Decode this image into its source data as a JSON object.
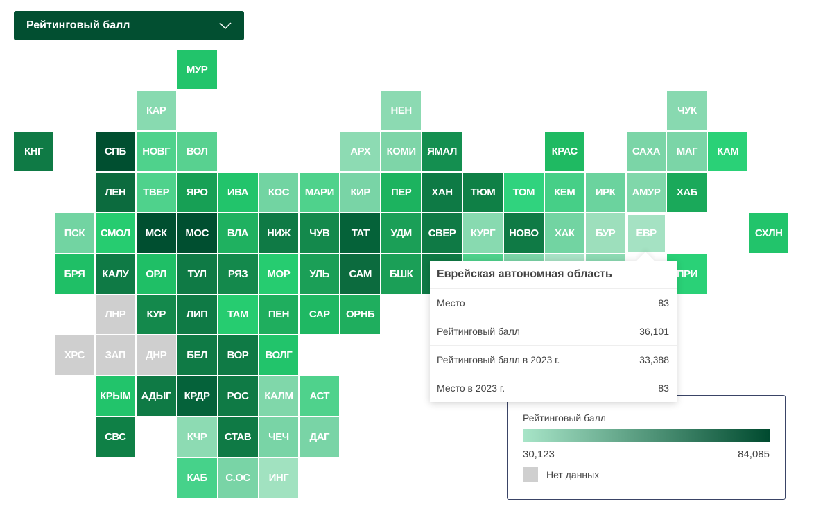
{
  "selector": {
    "label": "Рейтинговый балл"
  },
  "colors": {
    "no_data": "#cfcfcf",
    "scale_min": "#a8e5c8",
    "scale_max": "#004a2f",
    "selector_bg": "#024f31"
  },
  "tiles": [
    {
      "label": "МУР",
      "color": "#22c46b"
    },
    {
      "label": "КАР",
      "color": "#88dab0"
    },
    {
      "label": "НЕН",
      "color": "#8cdab2"
    },
    {
      "label": "ЧУК",
      "color": "#88d9b0"
    },
    {
      "label": "КНГ",
      "color": "#0f7a45"
    },
    {
      "label": "СПБ",
      "color": "#004f30"
    },
    {
      "label": "НОВГ",
      "color": "#4fd28c"
    },
    {
      "label": "ВОЛ",
      "color": "#58d190"
    },
    {
      "label": "АРХ",
      "color": "#8ddbb3"
    },
    {
      "label": "КОМИ",
      "color": "#7ed5a8"
    },
    {
      "label": "ЯМАЛ",
      "color": "#148f50"
    },
    {
      "label": "КРАС",
      "color": "#1fba62"
    },
    {
      "label": "САХА",
      "color": "#7bd5a7"
    },
    {
      "label": "МАГ",
      "color": "#7bd5a7"
    },
    {
      "label": "КАМ",
      "color": "#2ad177"
    },
    {
      "label": "ЛЕН",
      "color": "#0c6b3e"
    },
    {
      "label": "ТВЕР",
      "color": "#4fd28c"
    },
    {
      "label": "ЯРО",
      "color": "#17a055"
    },
    {
      "label": "ИВА",
      "color": "#22c46b"
    },
    {
      "label": "КОС",
      "color": "#72d4a2"
    },
    {
      "label": "МАРИ",
      "color": "#4fd28c"
    },
    {
      "label": "КИР",
      "color": "#79d4a6"
    },
    {
      "label": "ПЕР",
      "color": "#1cb35f"
    },
    {
      "label": "ХАН",
      "color": "#0e7a45"
    },
    {
      "label": "ТЮМ",
      "color": "#0f8046"
    },
    {
      "label": "ТОМ",
      "color": "#30d37e"
    },
    {
      "label": "КЕМ",
      "color": "#46cf87"
    },
    {
      "label": "ИРК",
      "color": "#6bd39e"
    },
    {
      "label": "АМУР",
      "color": "#80d7aa"
    },
    {
      "label": "ХАБ",
      "color": "#1aa95a"
    },
    {
      "label": "ПСК",
      "color": "#72d4a2"
    },
    {
      "label": "СМОЛ",
      "color": "#26cc70"
    },
    {
      "label": "МСК",
      "color": "#004f30"
    },
    {
      "label": "МОС",
      "color": "#004f30"
    },
    {
      "label": "ВЛА",
      "color": "#1fb160"
    },
    {
      "label": "НИЖ",
      "color": "#0f7a45"
    },
    {
      "label": "ЧУВ",
      "color": "#14894c"
    },
    {
      "label": "ТАТ",
      "color": "#056239"
    },
    {
      "label": "УДМ",
      "color": "#1b9f57"
    },
    {
      "label": "СВЕР",
      "color": "#0f7a45"
    },
    {
      "label": "КУРГ",
      "color": "#88dab0"
    },
    {
      "label": "НОВО",
      "color": "#0f7a45"
    },
    {
      "label": "ХАК",
      "color": "#72d4a2"
    },
    {
      "label": "БУР",
      "color": "#9ddfbc"
    },
    {
      "label": "ЕВР",
      "color": "#a5e2c3"
    },
    {
      "label": "СХЛН",
      "color": "#22c46b"
    },
    {
      "label": "БРЯ",
      "color": "#1fbf66"
    },
    {
      "label": "КАЛУ",
      "color": "#0f7a45"
    },
    {
      "label": "ОРЛ",
      "color": "#1fbf66"
    },
    {
      "label": "ТУЛ",
      "color": "#0f7a45"
    },
    {
      "label": "РЯЗ",
      "color": "#14894c"
    },
    {
      "label": "МОР",
      "color": "#26cc70"
    },
    {
      "label": "УЛЬ",
      "color": "#1b9f57"
    },
    {
      "label": "САМ",
      "color": "#0c6b3e"
    },
    {
      "label": "БШК",
      "color": "#1b9f57"
    },
    {
      "color": "#0f7a45"
    },
    {
      "color": "#4fd28c"
    },
    {
      "color": "#7bd5a7"
    },
    {
      "color": "#a9e3c6"
    },
    {
      "color": "#8ddbb3"
    },
    {
      "label": "ПРИ",
      "color": "#2ad177"
    },
    {
      "label": "ЛНР",
      "color": "#cfcfcf"
    },
    {
      "label": "КУР",
      "color": "#14894c"
    },
    {
      "label": "ЛИП",
      "color": "#0f7a45"
    },
    {
      "label": "ТАМ",
      "color": "#26cc70"
    },
    {
      "label": "ПЕН",
      "color": "#1fae5e"
    },
    {
      "label": "САР",
      "color": "#1fb863"
    },
    {
      "label": "ОРНБ",
      "color": "#1fae5e"
    },
    {
      "label": "ХРС",
      "color": "#cfcfcf"
    },
    {
      "label": "ЗАП",
      "color": "#cfcfcf"
    },
    {
      "label": "ДНР",
      "color": "#cfcfcf"
    },
    {
      "label": "БЕЛ",
      "color": "#0f7a45"
    },
    {
      "label": "ВОР",
      "color": "#0f7a45"
    },
    {
      "label": "ВОЛГ",
      "color": "#22c46b"
    },
    {
      "label": "КРЫМ",
      "color": "#22c46b"
    },
    {
      "label": "АДЫГ",
      "color": "#0f7a45"
    },
    {
      "label": "КРДР",
      "color": "#05623a"
    },
    {
      "label": "РОС",
      "color": "#0f7a45"
    },
    {
      "label": "КАЛМ",
      "color": "#80d7aa"
    },
    {
      "label": "АСТ",
      "color": "#4fd28c"
    },
    {
      "label": "СВС",
      "color": "#0f8046"
    },
    {
      "label": "КЧР",
      "color": "#8ddbb3"
    },
    {
      "label": "СТАВ",
      "color": "#0f7a45"
    },
    {
      "label": "ЧЕЧ",
      "color": "#79d4a6"
    },
    {
      "label": "ДАГ",
      "color": "#79d4a6"
    },
    {
      "label": "КАБ",
      "color": "#46d28a"
    },
    {
      "label": "С.ОС",
      "color": "#79d4a6"
    },
    {
      "label": "ИНГ",
      "color": "#a1e2c0"
    }
  ],
  "tooltip": {
    "title": "Еврейская автономная область",
    "rows": [
      {
        "label": "Место",
        "value": "83"
      },
      {
        "label": "Рейтинговый балл",
        "value": "36,101"
      },
      {
        "label": "Рейтинговый балл в 2023 г.",
        "value": "33,388"
      },
      {
        "label": "Место в 2023 г.",
        "value": "83"
      }
    ]
  },
  "legend": {
    "title": "Рейтинговый балл",
    "min": "30,123",
    "max": "84,085",
    "no_data": "Нет данных"
  }
}
